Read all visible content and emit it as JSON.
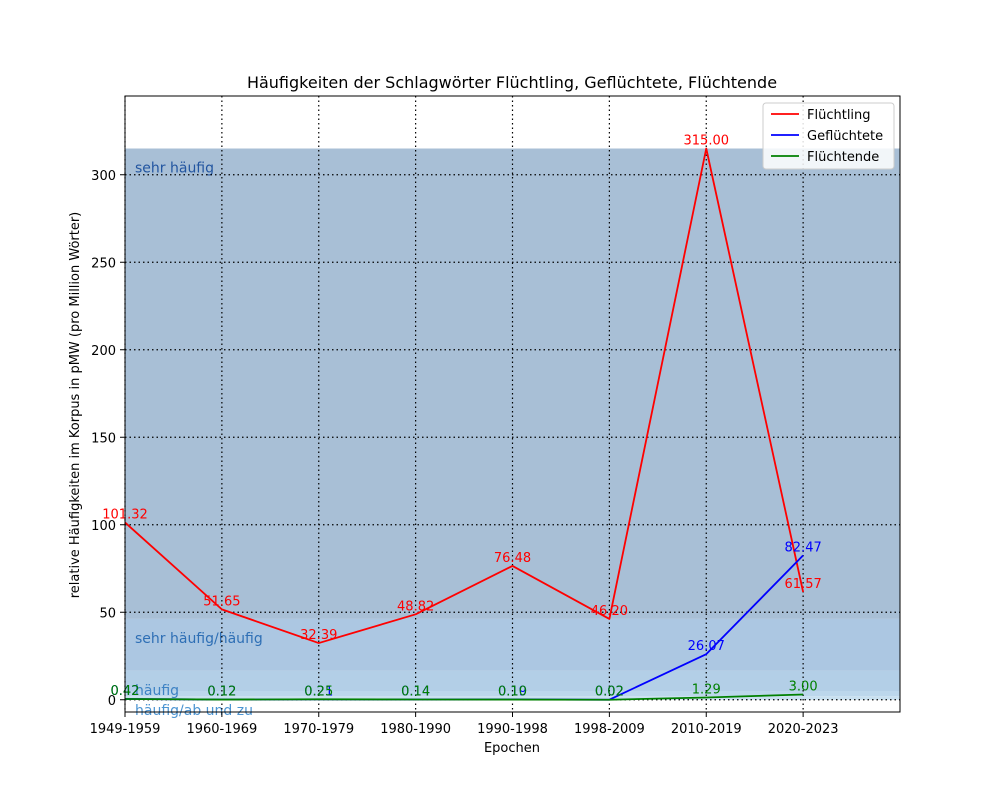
{
  "chart_data": {
    "type": "line",
    "title": "Häufigkeiten der Schlagwörter Flüchtling, Geflüchtete, Flüchtende",
    "xlabel": "Epochen",
    "ylabel": "relative Häufigkeiten im Korpus in pMW (pro Million Wörter)",
    "categories": [
      "1949-1959",
      "1960-1969",
      "1970-1979",
      "1980-1990",
      "1990-1998",
      "1998-2009",
      "2010-2019",
      "2020-2023"
    ],
    "xlim": [
      0,
      8
    ],
    "ylim": [
      -7,
      345
    ],
    "yticks": [
      0,
      50,
      100,
      150,
      200,
      250,
      300
    ],
    "grid": true,
    "legend_position": "top-right",
    "bands": [
      {
        "label": "sehr häufig",
        "from": 46.2,
        "to": 315,
        "color": "#a8bfd6",
        "label_color": "#2255a0"
      },
      {
        "label": "sehr häufig/häufig",
        "from": 16.5,
        "to": 46.2,
        "color": "#acc7e2",
        "label_color": "#2e6fb5"
      },
      {
        "label": "häufig",
        "from": 5,
        "to": 16.5,
        "color": "#b3cfe7",
        "label_color": "#3d82c4"
      },
      {
        "label": "häufig/ab und zu",
        "from": 2,
        "to": 5,
        "color": "#bcd7ec",
        "label_color": "#4d95d2"
      },
      {
        "label": "",
        "from": 0,
        "to": 2,
        "color": "#c8e0f0",
        "label_color": "#5aa6de"
      }
    ],
    "series": [
      {
        "name": "Flüchtling",
        "color": "#ff0000",
        "x": [
          0,
          1,
          2,
          3,
          4,
          5,
          6,
          7
        ],
        "values": [
          101.32,
          51.65,
          32.39,
          48.82,
          76.48,
          46.2,
          315.0,
          61.57
        ],
        "labels": [
          "101.32",
          "51.65",
          "32.39",
          "48.82",
          "76.48",
          "46.20",
          "315.00",
          "61.57"
        ]
      },
      {
        "name": "Geflüchtete",
        "color": "#0000ff",
        "x": [
          0,
          1,
          2,
          3,
          4,
          5,
          6,
          7
        ],
        "values": [
          0.42,
          0.12,
          0.21,
          0.14,
          0.19,
          0.02,
          26.07,
          82.47
        ],
        "labels": [
          "0.42",
          "0.12",
          "0.21",
          "0.14",
          "0.19",
          "0.02",
          "26.07",
          "82.47"
        ]
      },
      {
        "name": "Flüchtende",
        "color": "#008000",
        "x": [
          0,
          1,
          2,
          3,
          4,
          5,
          6,
          7
        ],
        "values": [
          0.42,
          0.12,
          0.25,
          0.14,
          0.1,
          0.02,
          1.29,
          3.0
        ],
        "labels": [
          "0.42",
          "0.12",
          "0.25",
          "0.14",
          "0.10",
          "0.02",
          "1.29",
          "3.00"
        ]
      }
    ]
  }
}
